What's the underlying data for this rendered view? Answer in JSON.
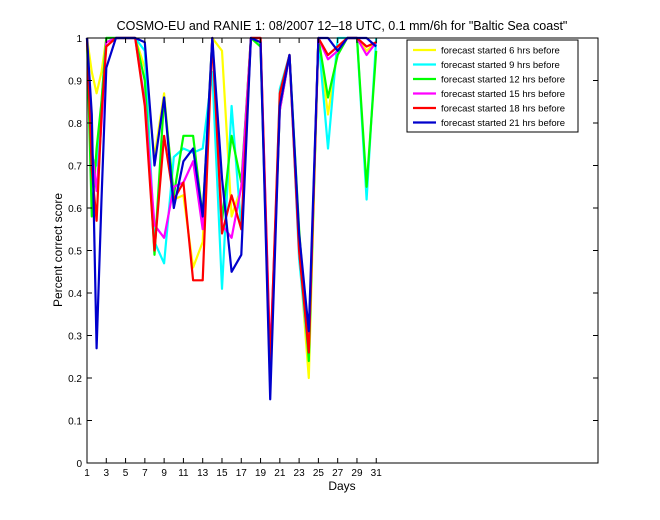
{
  "chart_data": {
    "type": "line",
    "title": "COSMO-EU and RANIE 1: 08/2007 12–18 UTC, 0.1 mm/6h for \"Baltic Sea coast\"",
    "xlabel": "Days",
    "ylabel": "Percent correct score",
    "xlim": [
      1,
      54
    ],
    "ylim": [
      0,
      1
    ],
    "xticks": [
      "1",
      "3",
      "5",
      "7",
      "9",
      "11",
      "13",
      "15",
      "17",
      "19",
      "21",
      "23",
      "25",
      "27",
      "29",
      "31"
    ],
    "yticks": [
      "0",
      "0.1",
      "0.2",
      "0.3",
      "0.4",
      "0.5",
      "0.6",
      "0.7",
      "0.8",
      "0.9",
      "1"
    ],
    "legend_position": "top-right",
    "grid": false,
    "x": [
      1,
      1.5,
      2,
      2.5,
      3,
      4,
      5,
      6,
      7,
      8,
      9,
      10,
      11,
      12,
      13,
      14,
      15,
      16,
      17,
      18,
      19,
      20,
      21,
      22,
      23,
      24,
      25,
      26,
      27,
      28,
      29,
      30,
      31
    ],
    "series": [
      {
        "name": "forecast started 6 hrs before",
        "color": "#ffff00",
        "values": [
          1,
          0.92,
          0.87,
          0.92,
          1,
          1,
          1,
          1,
          0.93,
          0.72,
          0.87,
          0.62,
          0.63,
          0.46,
          0.52,
          1,
          0.97,
          0.58,
          0.65,
          1,
          1,
          0.18,
          0.85,
          0.96,
          0.5,
          0.2,
          1,
          0.82,
          0.97,
          1,
          1,
          0.97,
          0.99
        ]
      },
      {
        "name": "forecast started 9 hrs before",
        "color": "#00ffff",
        "values": [
          1,
          0.72,
          0.7,
          0.85,
          1,
          1,
          1,
          1,
          0.97,
          0.52,
          0.47,
          0.72,
          0.74,
          0.73,
          0.74,
          0.92,
          0.41,
          0.84,
          0.55,
          1,
          1,
          0.18,
          0.88,
          0.96,
          0.48,
          0.25,
          1,
          0.74,
          1,
          1,
          1,
          0.62,
          1
        ]
      },
      {
        "name": "forecast started 12 hrs before",
        "color": "#00ff00",
        "values": [
          1,
          0.58,
          0.74,
          0.85,
          1,
          1,
          1,
          1,
          0.9,
          0.49,
          0.86,
          0.63,
          0.77,
          0.77,
          0.58,
          1,
          0.57,
          0.77,
          0.66,
          1,
          0.98,
          0.22,
          0.83,
          0.96,
          0.55,
          0.24,
          1,
          0.86,
          0.96,
          1,
          1,
          0.65,
          0.97
        ]
      },
      {
        "name": "forecast started 15 hrs before",
        "color": "#ff00ff",
        "values": [
          1,
          0.74,
          0.64,
          0.8,
          0.99,
          1,
          1,
          1,
          0.85,
          0.56,
          0.53,
          0.65,
          0.66,
          0.71,
          0.55,
          1,
          0.56,
          0.53,
          0.65,
          1,
          1,
          0.25,
          0.83,
          0.96,
          0.5,
          0.27,
          1,
          0.95,
          0.97,
          1,
          1,
          0.96,
          0.99
        ]
      },
      {
        "name": "forecast started 18 hrs before",
        "color": "#ff0000",
        "values": [
          1,
          0.69,
          0.57,
          0.82,
          0.98,
          1,
          1,
          1,
          0.84,
          0.5,
          0.77,
          0.62,
          0.66,
          0.43,
          0.43,
          1,
          0.54,
          0.63,
          0.55,
          1,
          1,
          0.23,
          0.87,
          0.96,
          0.5,
          0.26,
          1,
          0.96,
          0.98,
          1,
          1,
          0.98,
          0.99
        ]
      },
      {
        "name": "forecast started 21 hrs before",
        "color": "#0000cc",
        "values": [
          1,
          0.82,
          0.27,
          0.62,
          0.93,
          1,
          1,
          1,
          0.99,
          0.7,
          0.86,
          0.6,
          0.71,
          0.74,
          0.58,
          1,
          0.67,
          0.45,
          0.49,
          1,
          0.99,
          0.15,
          0.84,
          0.96,
          0.54,
          0.31,
          1,
          1,
          0.97,
          1,
          1,
          1,
          0.98
        ]
      }
    ]
  }
}
